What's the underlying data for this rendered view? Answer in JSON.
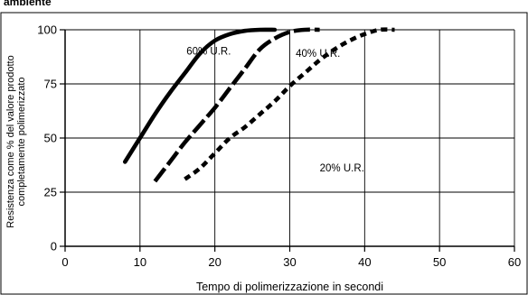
{
  "header_text": "ambiente",
  "chart_data": {
    "type": "line",
    "title": "",
    "xlabel": "Tempo di polimerizzazione in secondi",
    "ylabel_lines": [
      "Resistenza come % del valore prodotto",
      "completamente polimerizzato"
    ],
    "xlim": [
      0,
      60
    ],
    "ylim": [
      0,
      100
    ],
    "x_ticks": [
      0,
      10,
      20,
      30,
      40,
      50,
      60
    ],
    "y_ticks": [
      0,
      25,
      50,
      75,
      100
    ],
    "grid": true,
    "legend": "none",
    "series": [
      {
        "name": "60% U.R.",
        "line_style": "solid",
        "x": [
          8,
          10,
          12,
          14,
          16,
          18,
          20,
          22,
          24,
          26,
          28
        ],
        "y": [
          39,
          50,
          61,
          71,
          80,
          89,
          95,
          98,
          99.5,
          100,
          100
        ]
      },
      {
        "name": "40% U.R.",
        "line_style": "long-dash",
        "x": [
          12,
          14,
          16,
          18,
          20,
          22,
          24,
          26,
          28,
          30,
          32,
          34
        ],
        "y": [
          30,
          39,
          48,
          56,
          64,
          73,
          82,
          91,
          96,
          99,
          100,
          100
        ]
      },
      {
        "name": "20% U.R.",
        "line_style": "short-dash",
        "x": [
          16,
          18,
          20,
          22,
          24,
          26,
          28,
          30,
          32,
          34,
          36,
          38,
          40,
          42,
          44
        ],
        "y": [
          31,
          36,
          43,
          50,
          55,
          61,
          67,
          74,
          80,
          86,
          91,
          95,
          98,
          100,
          100
        ]
      }
    ],
    "series_labels": [
      {
        "text": "60% U.R.",
        "x": 16.2,
        "y": 88.5
      },
      {
        "text": "40% U.R.",
        "x": 30.8,
        "y": 87.5
      },
      {
        "text": "20% U.R.",
        "x": 34,
        "y": 34.5
      }
    ]
  }
}
